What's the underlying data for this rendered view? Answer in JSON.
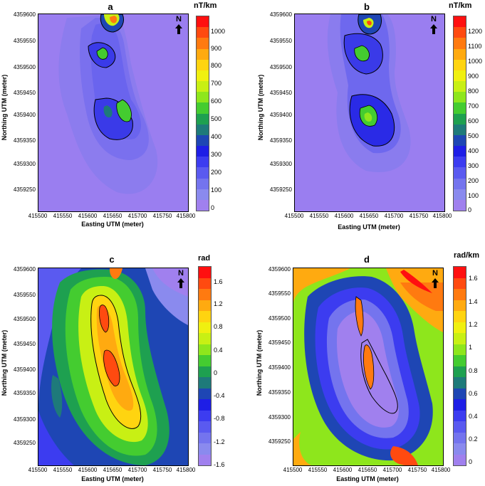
{
  "panels": [
    {
      "letter": "a",
      "unit": "nT/km",
      "north": "N",
      "xlabel": "Easting UTM (meter)",
      "ylabel": "Northing UTM (meter)",
      "xticks": [
        "415500",
        "415550",
        "415600",
        "415650",
        "415700",
        "415750",
        "415800"
      ],
      "yticks": [
        "4359600",
        "4359550",
        "4359500",
        "4359450",
        "4359400",
        "4359350",
        "4359300",
        "4359250"
      ],
      "cbar_ticks": [
        "1000",
        "900",
        "800",
        "700",
        "600",
        "500",
        "400",
        "300",
        "200",
        "100",
        "0"
      ],
      "cbar_colors": [
        "#ff1010",
        "#ff4a10",
        "#ff7a10",
        "#ffaa10",
        "#ffd410",
        "#f0f010",
        "#c8f014",
        "#8ee61c",
        "#44cc30",
        "#1ea050",
        "#1e7a7a",
        "#1e46b4",
        "#1e1ee6",
        "#3c3cf0",
        "#5a5af0",
        "#7474ee",
        "#8a8aee",
        "#a080ee"
      ]
    },
    {
      "letter": "b",
      "unit": "nT/km",
      "north": "N",
      "xlabel": "Easting UTM (meter)",
      "ylabel": "Northing UTM (meter)",
      "xticks": [
        "415500",
        "415550",
        "415600",
        "415650",
        "415700",
        "415750",
        "415800"
      ],
      "yticks": [
        "4359600",
        "4359550",
        "4359500",
        "4359450",
        "4359400",
        "4359350",
        "4359300",
        "4359250"
      ],
      "cbar_ticks": [
        "1200",
        "1100",
        "1000",
        "900",
        "800",
        "700",
        "600",
        "500",
        "400",
        "300",
        "200",
        "100",
        "0"
      ],
      "cbar_colors": [
        "#ff1010",
        "#ff4a10",
        "#ff7a10",
        "#ffaa10",
        "#ffd410",
        "#f0f010",
        "#c8f014",
        "#8ee61c",
        "#44cc30",
        "#1ea050",
        "#1e7a7a",
        "#1e46b4",
        "#1e1ee6",
        "#3c3cf0",
        "#5a5af0",
        "#7474ee",
        "#8a8aee",
        "#a080ee"
      ]
    },
    {
      "letter": "c",
      "unit": "rad",
      "north": "N",
      "xlabel": "Easting UTM (meter)",
      "ylabel": "Northing UTM (meter)",
      "xticks": [
        "415500",
        "415550",
        "415600",
        "415650",
        "415700",
        "415750",
        "415800"
      ],
      "yticks": [
        "4359600",
        "4359550",
        "4359500",
        "4359450",
        "4359400",
        "4359350",
        "4359300",
        "4359250"
      ],
      "cbar_ticks": [
        "1.6",
        "1.2",
        "0.8",
        "0.4",
        "0",
        "-0.4",
        "-0.8",
        "-1.2",
        "-1.6"
      ],
      "cbar_colors": [
        "#ff1010",
        "#ff4a10",
        "#ff7a10",
        "#ffaa10",
        "#ffd410",
        "#f0f010",
        "#c8f014",
        "#8ee61c",
        "#44cc30",
        "#1ea050",
        "#1e7a7a",
        "#1e46b4",
        "#1e1ee6",
        "#3c3cf0",
        "#5a5af0",
        "#7474ee",
        "#8a8aee",
        "#a080ee"
      ]
    },
    {
      "letter": "d",
      "unit": "rad/km",
      "north": "N",
      "xlabel": "Easting UTM (meter)",
      "ylabel": "Northing UTM (meter)",
      "xticks": [
        "415500",
        "415550",
        "415600",
        "415650",
        "415700",
        "415750",
        "415800"
      ],
      "yticks": [
        "4359600",
        "4359550",
        "4359500",
        "4359450",
        "4359400",
        "4359350",
        "4359300",
        "4359250"
      ],
      "cbar_ticks": [
        "1.6",
        "1.4",
        "1.2",
        "1",
        "0.8",
        "0.6",
        "0.4",
        "0.2",
        "0"
      ],
      "cbar_colors": [
        "#ff1010",
        "#ff4a10",
        "#ff7a10",
        "#ffaa10",
        "#ffd410",
        "#f0f010",
        "#c8f014",
        "#8ee61c",
        "#44cc30",
        "#1ea050",
        "#1e7a7a",
        "#1e46b4",
        "#1e1ee6",
        "#3c3cf0",
        "#5a5af0",
        "#7474ee",
        "#8a8aee",
        "#a080ee"
      ]
    }
  ]
}
